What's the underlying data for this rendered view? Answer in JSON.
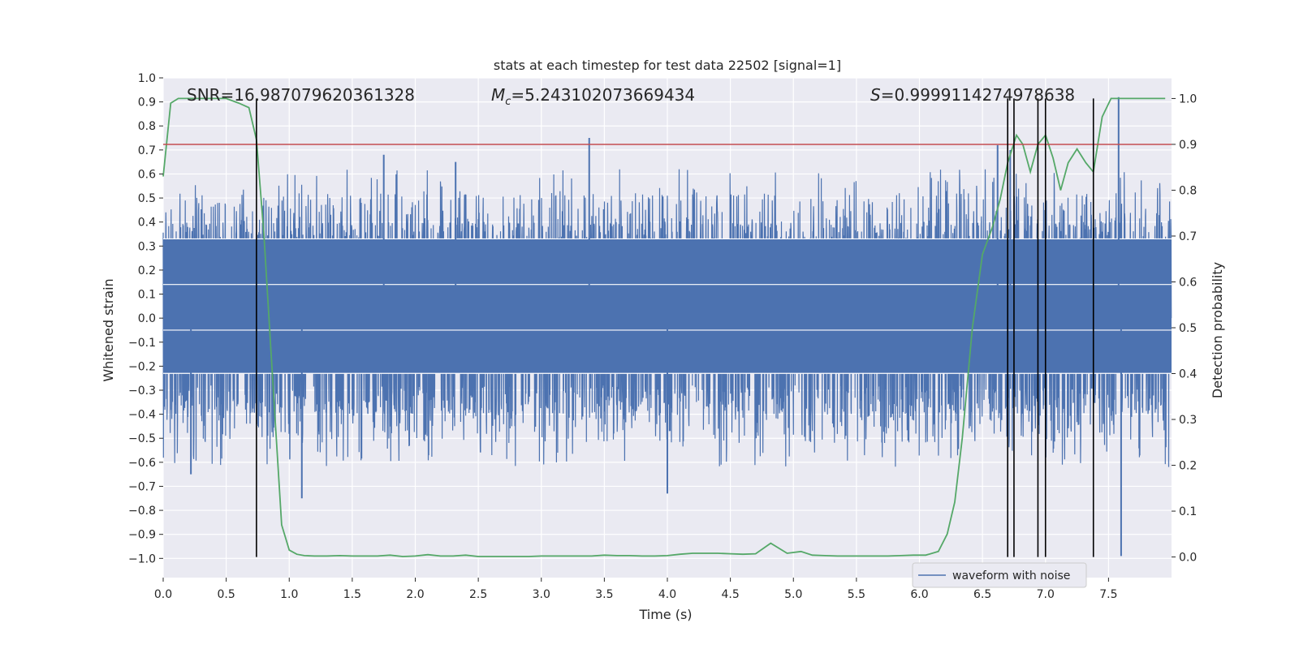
{
  "chart_data": {
    "type": "line",
    "title": "stats at each timestep for test data 22502 [signal=1]",
    "xlabel": "Time (s)",
    "ylabel": "Whitened strain",
    "y2label": "Detection probability",
    "xlim": [
      0.0,
      8.0
    ],
    "ylim": [
      -1.08,
      1.0
    ],
    "y2lim": [
      -0.045,
      1.045
    ],
    "x_ticks": [
      "0.0",
      "0.5",
      "1.0",
      "1.5",
      "2.0",
      "2.5",
      "3.0",
      "3.5",
      "4.0",
      "4.5",
      "5.0",
      "5.5",
      "6.0",
      "6.5",
      "7.0",
      "7.5"
    ],
    "y_ticks": [
      "−1.0",
      "−0.9",
      "−0.8",
      "−0.7",
      "−0.6",
      "−0.5",
      "−0.4",
      "−0.3",
      "−0.2",
      "−0.1",
      "0.0",
      "0.1",
      "0.2",
      "0.3",
      "0.4",
      "0.5",
      "0.6",
      "0.7",
      "0.8",
      "0.9",
      "1.0"
    ],
    "y2_ticks": [
      "0.0",
      "0.1",
      "0.2",
      "0.3",
      "0.4",
      "0.5",
      "0.6",
      "0.7",
      "0.8",
      "0.9",
      "1.0"
    ],
    "grid": true,
    "legend_position": "lower-right",
    "annotations": {
      "snr": "SNR=16.987079620361328",
      "mc_symbol": "M",
      "mc_sub": "c",
      "mc_value": "=5.243102073669434",
      "s_symbol": "S",
      "s_value": "=0.9999114274978638"
    },
    "threshold": {
      "axis": "y2",
      "value": 0.9,
      "color": "#c44e52"
    },
    "vertical_lines": [
      0.74,
      6.7,
      6.75,
      6.94,
      7.0,
      7.38
    ],
    "series": [
      {
        "name": "waveform with noise",
        "axis": "y",
        "color": "#4c72b0",
        "band_lower": -0.23,
        "band_upper": 0.33,
        "peaks": [
          [
            3.38,
            0.75
          ],
          [
            7.58,
            0.92
          ],
          [
            1.75,
            0.68
          ],
          [
            2.32,
            0.65
          ],
          [
            6.62,
            0.72
          ],
          [
            6.72,
            0.7
          ],
          [
            4.0,
            -0.73
          ],
          [
            1.1,
            -0.75
          ],
          [
            7.6,
            -0.99
          ],
          [
            0.22,
            -0.65
          ]
        ]
      },
      {
        "name": "detection probability",
        "axis": "y2",
        "color": "#55a868",
        "x": [
          0.0,
          0.06,
          0.12,
          0.2,
          0.3,
          0.4,
          0.5,
          0.6,
          0.68,
          0.74,
          0.8,
          0.87,
          0.94,
          1.0,
          1.06,
          1.12,
          1.2,
          1.3,
          1.4,
          1.5,
          1.6,
          1.7,
          1.8,
          1.9,
          2.0,
          2.1,
          2.2,
          2.3,
          2.4,
          2.5,
          2.6,
          2.7,
          2.8,
          2.9,
          3.0,
          3.1,
          3.2,
          3.3,
          3.4,
          3.5,
          3.6,
          3.7,
          3.8,
          3.9,
          4.0,
          4.1,
          4.2,
          4.3,
          4.4,
          4.5,
          4.6,
          4.7,
          4.82,
          4.95,
          5.06,
          5.15,
          5.25,
          5.35,
          5.45,
          5.55,
          5.65,
          5.75,
          5.85,
          5.95,
          6.05,
          6.15,
          6.22,
          6.28,
          6.34,
          6.42,
          6.5,
          6.58,
          6.64,
          6.7,
          6.77,
          6.82,
          6.88,
          6.94,
          7.0,
          7.06,
          7.12,
          7.18,
          7.25,
          7.32,
          7.38,
          7.45,
          7.52,
          7.6,
          7.7,
          7.8,
          7.9,
          7.95
        ],
        "values": [
          0.83,
          0.99,
          1.0,
          1.0,
          1.0,
          1.0,
          1.0,
          0.99,
          0.98,
          0.91,
          0.7,
          0.38,
          0.07,
          0.015,
          0.006,
          0.003,
          0.002,
          0.002,
          0.003,
          0.002,
          0.002,
          0.002,
          0.004,
          0.001,
          0.002,
          0.005,
          0.002,
          0.002,
          0.004,
          0.001,
          0.001,
          0.001,
          0.001,
          0.001,
          0.002,
          0.002,
          0.002,
          0.002,
          0.002,
          0.004,
          0.003,
          0.003,
          0.002,
          0.002,
          0.003,
          0.006,
          0.008,
          0.008,
          0.008,
          0.007,
          0.006,
          0.007,
          0.03,
          0.008,
          0.012,
          0.004,
          0.003,
          0.002,
          0.002,
          0.002,
          0.002,
          0.002,
          0.003,
          0.004,
          0.004,
          0.012,
          0.05,
          0.12,
          0.26,
          0.5,
          0.66,
          0.72,
          0.78,
          0.86,
          0.92,
          0.9,
          0.84,
          0.9,
          0.92,
          0.87,
          0.8,
          0.86,
          0.89,
          0.86,
          0.84,
          0.96,
          1.0,
          1.0,
          1.0,
          1.0,
          1.0,
          1.0
        ]
      }
    ]
  }
}
